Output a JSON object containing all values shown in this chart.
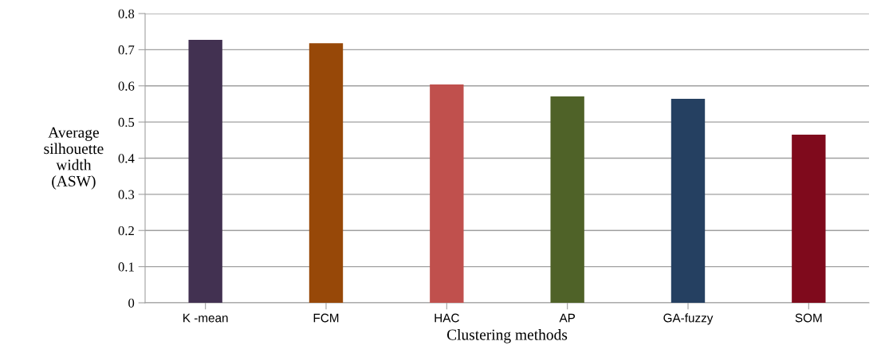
{
  "chart_data": {
    "type": "bar",
    "xlabel": "Clustering methods",
    "ylabel": "Average\nsilhouette\nwidth\n(ASW)",
    "categories": [
      "K -mean",
      "FCM",
      "HAC",
      "AP",
      "GA-fuzzy",
      "SOM"
    ],
    "values": [
      0.727,
      0.718,
      0.604,
      0.571,
      0.564,
      0.465
    ],
    "colors": [
      "#423151",
      "#974808",
      "#c0504d",
      "#4f6228",
      "#254061",
      "#7f0a1c"
    ],
    "ylim": [
      0,
      0.8
    ],
    "yticks": [
      0,
      0.1,
      0.2,
      0.3,
      0.4,
      0.5,
      0.6,
      0.7,
      0.8
    ],
    "grid": "y"
  }
}
